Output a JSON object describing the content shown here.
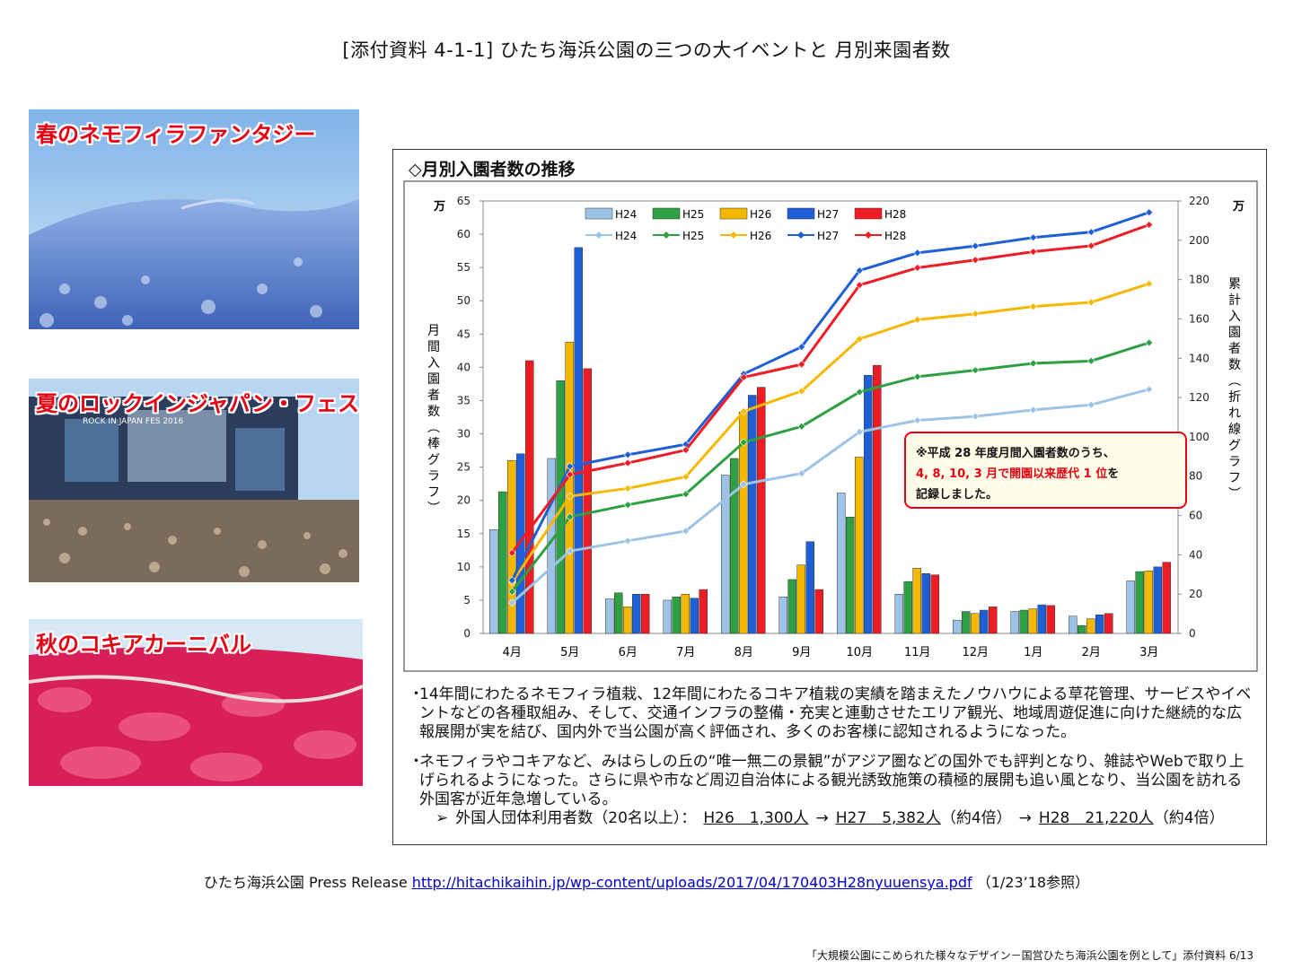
{
  "page": {
    "title": "[添付資料 4-1-1] ひたち海浜公園の三つの大イベントと 月別来園者数",
    "footer": "「大規模公園にこめられた様々なデザイン－国営ひたち海浜公園を例として」添付資料 6/13"
  },
  "photos": {
    "spring": "春のネモフィラファンタジー",
    "summer": "夏のロックインジャパン・フェス",
    "summer_sign": "ROCK IN JAPAN FES 2016",
    "autumn": "秋のコキアカーニバル"
  },
  "chart_title": "◇月別入園者数の推移",
  "chart_data": {
    "type": "bar",
    "categories": [
      "4月",
      "5月",
      "6月",
      "7月",
      "8月",
      "9月",
      "10月",
      "11月",
      "12月",
      "1月",
      "2月",
      "3月"
    ],
    "left_axis": {
      "unit": "万",
      "label": "月間入園者数(棒グラフ)",
      "ylim": [
        0,
        65
      ],
      "ticks": [
        0,
        5,
        10,
        15,
        20,
        25,
        30,
        35,
        40,
        45,
        50,
        55,
        60,
        65
      ]
    },
    "right_axis": {
      "unit": "万",
      "label": "累計入園者数(折れ線グラフ)",
      "ylim": [
        0,
        220
      ],
      "ticks": [
        0,
        20,
        40,
        60,
        80,
        100,
        120,
        140,
        160,
        180,
        200,
        220
      ]
    },
    "grid": false,
    "legend": "top",
    "bar_series": [
      {
        "name": "H24",
        "color": "#9dc3e6",
        "values": [
          15.6,
          26.3,
          5.2,
          5.0,
          23.8,
          5.5,
          21.1,
          5.9,
          2.0,
          3.3,
          2.6,
          7.9
        ]
      },
      {
        "name": "H25",
        "color": "#2ea043",
        "values": [
          21.3,
          38.0,
          6.1,
          5.5,
          26.3,
          8.1,
          17.5,
          7.8,
          3.3,
          3.5,
          1.2,
          9.3
        ]
      },
      {
        "name": "H26",
        "color": "#f5b800",
        "values": [
          26.0,
          43.8,
          4.0,
          5.9,
          33.3,
          10.3,
          26.5,
          9.8,
          3.0,
          3.7,
          2.2,
          9.4
        ]
      },
      {
        "name": "H27",
        "color": "#1f5fd6",
        "values": [
          27.0,
          58.0,
          5.9,
          5.3,
          35.8,
          13.8,
          38.8,
          9.0,
          3.5,
          4.3,
          2.8,
          10.0
        ]
      },
      {
        "name": "H28",
        "color": "#ee1c25",
        "values": [
          41.0,
          39.8,
          5.9,
          6.6,
          37.0,
          6.6,
          40.3,
          8.8,
          4.0,
          4.2,
          3.0,
          10.7
        ]
      }
    ],
    "line_series": [
      {
        "name": "H24",
        "color": "#9dc3e6",
        "values": [
          15.6,
          41.9,
          47.1,
          52.1,
          75.9,
          81.4,
          102.5,
          108.4,
          110.4,
          113.7,
          116.3,
          124.2
        ]
      },
      {
        "name": "H25",
        "color": "#2ea043",
        "values": [
          21.3,
          59.3,
          65.4,
          70.9,
          97.2,
          105.3,
          122.8,
          130.6,
          133.9,
          137.4,
          138.6,
          147.9
        ]
      },
      {
        "name": "H26",
        "color": "#f5b800",
        "values": [
          26.0,
          69.8,
          73.8,
          79.7,
          113.0,
          123.3,
          149.8,
          159.6,
          162.6,
          166.3,
          168.5,
          177.9
        ]
      },
      {
        "name": "H27",
        "color": "#1f5fd6",
        "values": [
          27.0,
          85.0,
          90.9,
          96.2,
          132.0,
          145.8,
          184.6,
          193.6,
          197.1,
          201.4,
          204.2,
          214.2
        ]
      },
      {
        "name": "H28",
        "color": "#ee1c25",
        "values": [
          41.0,
          80.8,
          86.7,
          93.3,
          130.3,
          136.9,
          177.2,
          186.0,
          190.0,
          194.2,
          197.2,
          207.9
        ]
      }
    ],
    "annotation": {
      "line1": "※平成 28 年度月間入園者数のうち、",
      "line2_red": "4, 8, 10, 3 月で開園以来歴代 1 位",
      "line2_tail": "を",
      "line3": "記録しました。"
    }
  },
  "notes": {
    "bullet": "・",
    "p1": "14年間にわたるネモフィラ植栽、12年間にわたるコキア植栽の実績を踏まえたノウハウによる草花管理、サービスやイベントなどの各種取組み、そして、交通インフラの整備・充実と連動させたエリア観光、地域周遊促進に向けた継続的な広報展開が実を結び、国内外で当公園が高く評価され、多くのお客様に認知されるようになった。",
    "p2": "ネモフィラやコキアなど、みはらしの丘の“唯一無二の景観”がアジア圏などの国外でも評判となり、雑誌やWebで取り上げられるようになった。さらに県や市など周辺自治体による観光誘致施策の積極的展開も追い風となり、当公園を訪れる外国客が近年急増している。",
    "foreign_arrow": "➢",
    "foreign_label": "外国人団体利用者数（20名以上）：",
    "h26": "H26　1,300人",
    "arrow": "→",
    "h27": "H27　5,382人",
    "ratio1": "（約4倍）",
    "h28": "H28　21,220人",
    "ratio2": "（約4倍）"
  },
  "source": {
    "label": "ひたち海浜公園 Press Release",
    "url": "http://hitachikaihin.jp/wp-content/uploads/2017/04/170403H28nyuuensya.pdf",
    "note": "（1/23’18参照）"
  }
}
